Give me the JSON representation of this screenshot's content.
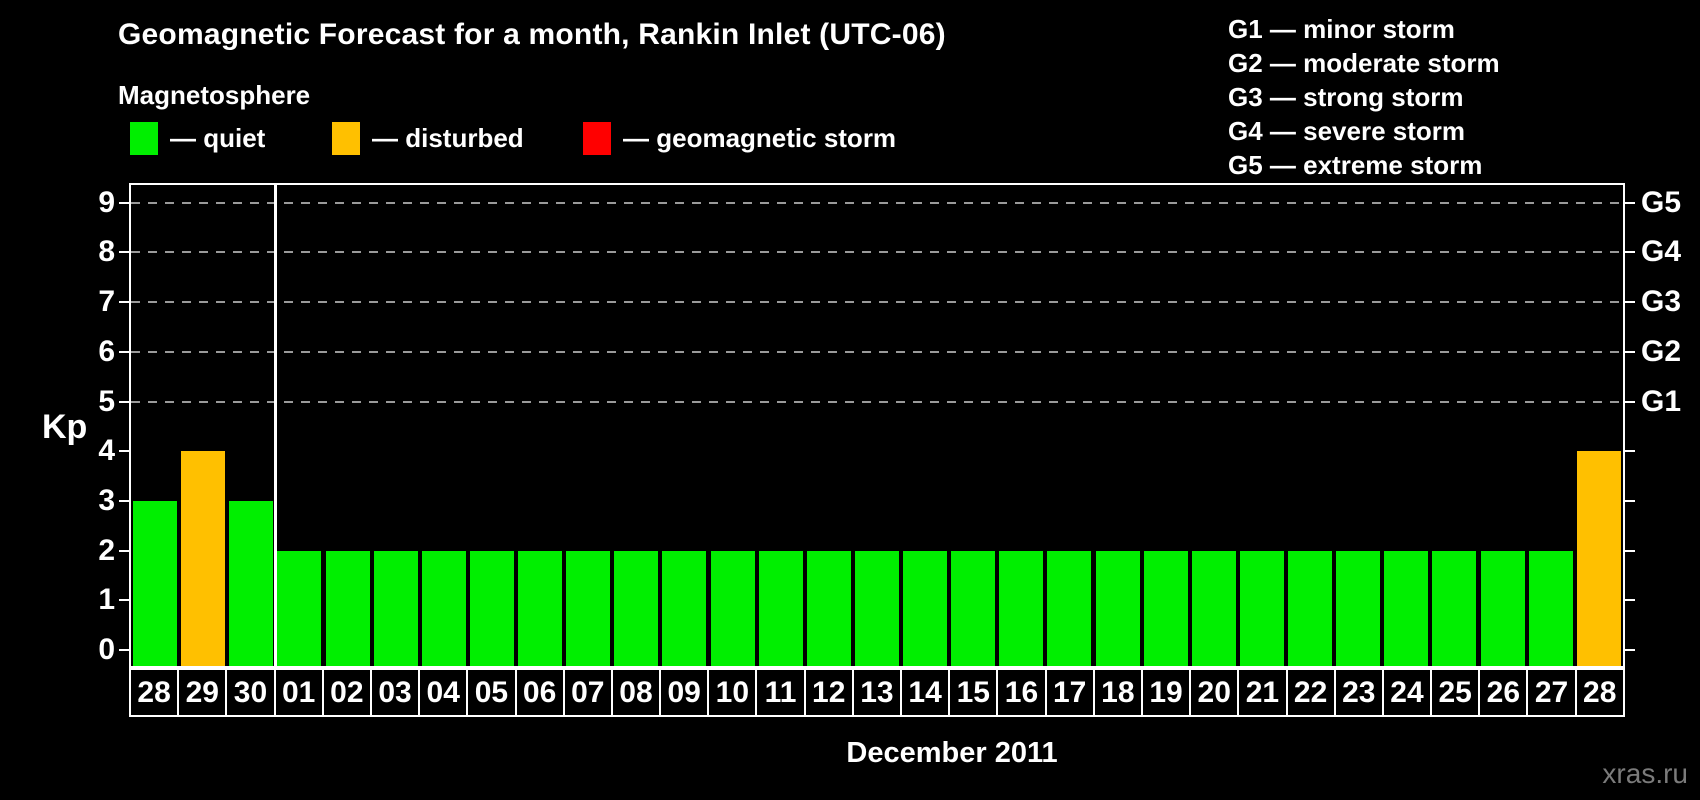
{
  "title": "Geomagnetic Forecast for a month, Rankin Inlet (UTC-06)",
  "subtitle": "Magnetosphere",
  "legend": {
    "items": [
      {
        "key": "quiet",
        "label": "— quiet",
        "color": "#00ef00"
      },
      {
        "key": "disturbed",
        "label": "— disturbed",
        "color": "#ffc000"
      },
      {
        "key": "storm",
        "label": "— geomagnetic storm",
        "color": "#ff0000"
      }
    ]
  },
  "g_scale_legend": [
    "G1 — minor storm",
    "G2 — moderate storm",
    "G3 — strong storm",
    "G4 — severe storm",
    "G5 — extreme storm"
  ],
  "axes": {
    "y_label": "Kp",
    "y_ticks": [
      0,
      1,
      2,
      3,
      4,
      5,
      6,
      7,
      8,
      9
    ],
    "right_g_labels": [
      {
        "kp": 5,
        "label": "G1"
      },
      {
        "kp": 6,
        "label": "G2"
      },
      {
        "kp": 7,
        "label": "G3"
      },
      {
        "kp": 8,
        "label": "G4"
      },
      {
        "kp": 9,
        "label": "G5"
      }
    ],
    "x_label": "December 2011"
  },
  "watermark": "xras.ru",
  "chart_data": {
    "type": "bar",
    "title": "Geomagnetic Forecast for a month, Rankin Inlet (UTC-06)",
    "xlabel": "December 2011",
    "ylabel": "Kp",
    "ylim": [
      0,
      9.5
    ],
    "grid": "dashed horizontal at Kp 5-9 (G1-G5)",
    "categories": [
      "28",
      "29",
      "30",
      "01",
      "02",
      "03",
      "04",
      "05",
      "06",
      "07",
      "08",
      "09",
      "10",
      "11",
      "12",
      "13",
      "14",
      "15",
      "16",
      "17",
      "18",
      "19",
      "20",
      "21",
      "22",
      "23",
      "24",
      "25",
      "26",
      "27",
      "28"
    ],
    "values": [
      3,
      4,
      3,
      2,
      2,
      2,
      2,
      2,
      2,
      2,
      2,
      2,
      2,
      2,
      2,
      2,
      2,
      2,
      2,
      2,
      2,
      2,
      2,
      2,
      2,
      2,
      2,
      2,
      2,
      2,
      4
    ],
    "statuses": [
      "quiet",
      "disturbed",
      "quiet",
      "quiet",
      "quiet",
      "quiet",
      "quiet",
      "quiet",
      "quiet",
      "quiet",
      "quiet",
      "quiet",
      "quiet",
      "quiet",
      "quiet",
      "quiet",
      "quiet",
      "quiet",
      "quiet",
      "quiet",
      "quiet",
      "quiet",
      "quiet",
      "quiet",
      "quiet",
      "quiet",
      "quiet",
      "quiet",
      "quiet",
      "quiet",
      "disturbed"
    ],
    "status_colors": {
      "quiet": "#00ef00",
      "disturbed": "#ffc000",
      "storm": "#ff0000"
    },
    "gridlines_at_kp": [
      5,
      6,
      7,
      8,
      9
    ],
    "month_boundary_after_index": 2
  }
}
